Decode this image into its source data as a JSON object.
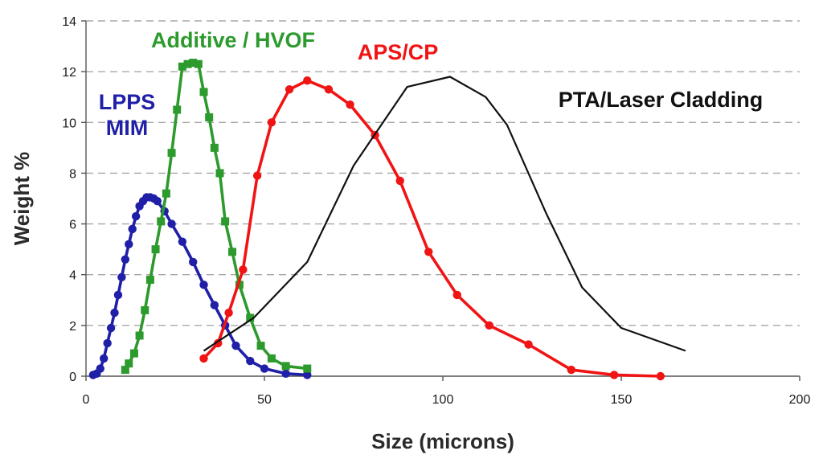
{
  "chart_data": {
    "type": "line",
    "title": "",
    "xlabel": "Size (microns)",
    "ylabel": "Weight %",
    "xlim": [
      0,
      200
    ],
    "ylim": [
      0,
      14
    ],
    "xticks": [
      0,
      50,
      100,
      150,
      200
    ],
    "yticks": [
      0,
      2,
      4,
      6,
      8,
      10,
      12,
      14
    ],
    "grid": "horizontal dashed",
    "series": [
      {
        "name": "LPPS MIM",
        "label_lines": [
          "LPPS",
          "MIM"
        ],
        "color": "#1f1fa8",
        "marker": "circle",
        "x": [
          2,
          3,
          4,
          5,
          6,
          7,
          8,
          9,
          10,
          11,
          12,
          13,
          14,
          15,
          16,
          17,
          18,
          19,
          20,
          22,
          24,
          27,
          30,
          33,
          36,
          39,
          42,
          46,
          50,
          56,
          62
        ],
        "y": [
          0.05,
          0.1,
          0.3,
          0.7,
          1.3,
          1.9,
          2.5,
          3.2,
          3.9,
          4.6,
          5.2,
          5.8,
          6.3,
          6.7,
          6.9,
          7.05,
          7.05,
          7.0,
          6.9,
          6.5,
          6.0,
          5.3,
          4.5,
          3.6,
          2.8,
          2.0,
          1.2,
          0.6,
          0.3,
          0.1,
          0.05
        ]
      },
      {
        "name": "Additive / HVOF",
        "label_lines": [
          "Additive / HVOF"
        ],
        "color": "#2c9a2c",
        "marker": "square",
        "x": [
          11,
          12,
          13.5,
          15,
          16.5,
          18,
          19.5,
          21,
          22.5,
          24,
          25.5,
          27,
          28.5,
          30,
          31.5,
          33,
          34.5,
          36,
          37.5,
          39,
          41,
          43,
          46,
          49,
          52,
          56,
          62
        ],
        "y": [
          0.25,
          0.5,
          0.9,
          1.6,
          2.6,
          3.8,
          5.0,
          6.1,
          7.2,
          8.8,
          10.5,
          12.2,
          12.3,
          12.35,
          12.3,
          11.2,
          10.2,
          9.0,
          8.0,
          6.1,
          4.9,
          3.6,
          2.3,
          1.2,
          0.7,
          0.4,
          0.3
        ]
      },
      {
        "name": "APS/CP",
        "label_lines": [
          "APS/CP"
        ],
        "color": "#f01414",
        "marker": "circle",
        "x": [
          33,
          37,
          40,
          44,
          48,
          52,
          57,
          62,
          68,
          74,
          81,
          88,
          96,
          104,
          113,
          124,
          136,
          148,
          161
        ],
        "y": [
          0.7,
          1.3,
          2.5,
          4.2,
          7.9,
          10.0,
          11.3,
          11.65,
          11.3,
          10.7,
          9.5,
          7.7,
          4.9,
          3.2,
          2.0,
          1.25,
          0.25,
          0.05,
          0.0
        ]
      },
      {
        "name": "PTA/Laser Cladding",
        "label_lines": [
          "PTA/Laser Cladding"
        ],
        "color": "#111111",
        "marker": "none",
        "x": [
          33,
          47,
          62,
          75,
          90,
          102,
          112,
          118,
          129,
          139,
          150,
          168
        ],
        "y": [
          1.0,
          2.3,
          4.5,
          8.3,
          11.4,
          11.8,
          11.0,
          9.9,
          6.4,
          3.5,
          1.9,
          1.0
        ]
      }
    ]
  }
}
